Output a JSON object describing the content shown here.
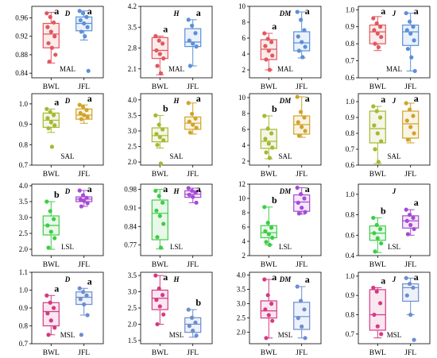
{
  "colors": {
    "BWL": "#e0585e",
    "JFL": "#5b8fd8",
    "SAL": "#a6b832",
    "LSL_BWL": "#3fcc48",
    "LSL_JFL": "#a64bd3",
    "MSL_BWL": "#d43a84",
    "MSL_JFL": "#6c8dd0",
    "SAL_JFL": "#d1a32a"
  },
  "chart_data": [
    {
      "type": "box",
      "region": "MAL",
      "metric": "D",
      "categories": [
        "BWL",
        "JFL"
      ],
      "yticks": [
        "0.84",
        "0.88",
        "0.92",
        "0.96"
      ],
      "ylim": [
        0.83,
        0.985
      ],
      "series": [
        {
          "name": "BWL",
          "color": "#e0585e",
          "q1": 0.895,
          "median": 0.925,
          "q3": 0.948,
          "min": 0.862,
          "max": 0.972,
          "letter": "a",
          "points": [
            0.97,
            0.962,
            0.95,
            0.94,
            0.93,
            0.92,
            0.905,
            0.895,
            0.88,
            0.865
          ]
        },
        {
          "name": "JFL",
          "color": "#5b8fd8",
          "q1": 0.932,
          "median": 0.948,
          "q3": 0.962,
          "min": 0.912,
          "max": 0.975,
          "letter": "a",
          "points": [
            0.975,
            0.97,
            0.962,
            0.955,
            0.948,
            0.94,
            0.93,
            0.92,
            0.845
          ]
        }
      ]
    },
    {
      "type": "box",
      "region": "MAL",
      "metric": "H",
      "categories": [
        "BWL",
        "JFL"
      ],
      "yticks": [
        "2.1",
        "2.8",
        "3.5",
        "4.2"
      ],
      "ylim": [
        1.8,
        4.2
      ],
      "series": [
        {
          "name": "BWL",
          "color": "#e0585e",
          "q1": 2.45,
          "median": 2.72,
          "q3": 3.15,
          "min": 1.9,
          "max": 3.2,
          "letter": "a",
          "points": [
            3.2,
            3.05,
            2.95,
            2.72,
            2.6,
            2.45,
            2.2,
            1.95
          ]
        },
        {
          "name": "JFL",
          "color": "#5b8fd8",
          "q1": 2.85,
          "median": 3.0,
          "q3": 3.45,
          "min": 2.2,
          "max": 3.75,
          "letter": "a",
          "points": [
            3.75,
            3.55,
            3.3,
            3.05,
            2.95,
            2.85,
            2.2
          ]
        }
      ]
    },
    {
      "type": "box",
      "region": "MAL",
      "metric": "DM",
      "categories": [
        "BWL",
        "JFL"
      ],
      "yticks": [
        "2",
        "4",
        "6",
        "8",
        "10"
      ],
      "ylim": [
        1,
        10
      ],
      "series": [
        {
          "name": "BWL",
          "color": "#e0585e",
          "q1": 3.3,
          "median": 4.6,
          "q3": 5.8,
          "min": 2.0,
          "max": 6.6,
          "letter": "a",
          "points": [
            6.6,
            5.9,
            5.5,
            5.0,
            4.4,
            3.8,
            3.3,
            2.0
          ]
        },
        {
          "name": "JFL",
          "color": "#5b8fd8",
          "q1": 4.4,
          "median": 5.4,
          "q3": 6.8,
          "min": 3.5,
          "max": 9.3,
          "letter": "a",
          "points": [
            9.3,
            8.3,
            7.0,
            6.2,
            5.5,
            4.9,
            4.4,
            3.6
          ]
        }
      ]
    },
    {
      "type": "box",
      "region": "MAL",
      "metric": "J",
      "categories": [
        "BWL",
        "JFL"
      ],
      "yticks": [
        "0.6",
        "0.7",
        "0.8",
        "0.9",
        "1.0"
      ],
      "ylim": [
        0.6,
        1.02
      ],
      "series": [
        {
          "name": "BWL",
          "color": "#e0585e",
          "q1": 0.8,
          "median": 0.87,
          "q3": 0.91,
          "min": 0.76,
          "max": 0.96,
          "letter": "a",
          "points": [
            0.95,
            0.92,
            0.9,
            0.88,
            0.86,
            0.84,
            0.8,
            0.78
          ]
        },
        {
          "name": "JFL",
          "color": "#5b8fd8",
          "q1": 0.79,
          "median": 0.87,
          "q3": 0.91,
          "min": 0.64,
          "max": 0.98,
          "letter": "a",
          "points": [
            0.98,
            0.93,
            0.9,
            0.88,
            0.86,
            0.82,
            0.77,
            0.72,
            0.64
          ]
        }
      ]
    },
    {
      "type": "box",
      "region": "SAL",
      "metric": "D",
      "categories": [
        "BWL",
        "JFL"
      ],
      "yticks": [
        "0.7",
        "0.8",
        "0.9",
        "1.0"
      ],
      "ylim": [
        0.7,
        1.05
      ],
      "series": [
        {
          "name": "BWL",
          "color": "#a6b832",
          "q1": 0.885,
          "median": 0.92,
          "q3": 0.955,
          "min": 0.86,
          "max": 0.975,
          "letter": "a",
          "points": [
            0.975,
            0.96,
            0.945,
            0.93,
            0.91,
            0.895,
            0.88,
            0.79
          ]
        },
        {
          "name": "JFL",
          "color": "#d1a32a",
          "q1": 0.925,
          "median": 0.945,
          "q3": 0.975,
          "min": 0.905,
          "max": 0.995,
          "letter": "a",
          "points": [
            0.995,
            0.985,
            0.97,
            0.955,
            0.945,
            0.935,
            0.925
          ]
        }
      ]
    },
    {
      "type": "box",
      "region": "SAL",
      "metric": "H",
      "categories": [
        "BWL",
        "JFL"
      ],
      "yticks": [
        "2.0",
        "2.5",
        "3.0",
        "3.5",
        "4.0"
      ],
      "ylim": [
        1.9,
        4.2
      ],
      "series": [
        {
          "name": "BWL",
          "color": "#a6b832",
          "q1": 2.65,
          "median": 2.85,
          "q3": 3.1,
          "min": 2.45,
          "max": 3.5,
          "letter": "b",
          "points": [
            3.5,
            3.2,
            3.05,
            2.9,
            2.8,
            2.7,
            2.55,
            1.95
          ]
        },
        {
          "name": "JFL",
          "color": "#d1a32a",
          "q1": 3.05,
          "median": 3.25,
          "q3": 3.45,
          "min": 2.9,
          "max": 3.9,
          "letter": "a",
          "points": [
            3.9,
            3.55,
            3.4,
            3.3,
            3.2,
            3.1,
            2.95
          ]
        }
      ]
    },
    {
      "type": "box",
      "region": "SAL",
      "metric": "DM",
      "categories": [
        "BWL",
        "JFL"
      ],
      "yticks": [
        "2",
        "4",
        "6",
        "8",
        "10"
      ],
      "ylim": [
        1.5,
        10.5
      ],
      "series": [
        {
          "name": "BWL",
          "color": "#a6b832",
          "q1": 3.6,
          "median": 4.5,
          "q3": 6.0,
          "min": 2.3,
          "max": 7.7,
          "letter": "b",
          "points": [
            7.7,
            6.1,
            5.5,
            4.8,
            4.2,
            3.7,
            3.1,
            2.4
          ]
        },
        {
          "name": "JFL",
          "color": "#d1a32a",
          "q1": 5.4,
          "median": 6.6,
          "q3": 7.7,
          "min": 5.0,
          "max": 10.1,
          "letter": "a",
          "points": [
            10.1,
            8.2,
            7.5,
            6.9,
            6.3,
            5.8,
            5.2
          ]
        }
      ]
    },
    {
      "type": "box",
      "region": "SAL",
      "metric": "J",
      "categories": [
        "BWL",
        "JFL"
      ],
      "yticks": [
        "0.6",
        "0.7",
        "0.8",
        "0.9",
        "1.0"
      ],
      "ylim": [
        0.6,
        1.05
      ],
      "series": [
        {
          "name": "BWL",
          "color": "#a6b832",
          "q1": 0.74,
          "median": 0.83,
          "q3": 0.94,
          "min": 0.61,
          "max": 0.97,
          "letter": "a",
          "points": [
            0.97,
            0.94,
            0.9,
            0.85,
            0.8,
            0.75,
            0.7,
            0.62
          ]
        },
        {
          "name": "JFL",
          "color": "#d1a32a",
          "q1": 0.77,
          "median": 0.86,
          "q3": 0.94,
          "min": 0.74,
          "max": 0.99,
          "letter": "a",
          "points": [
            0.99,
            0.95,
            0.91,
            0.88,
            0.84,
            0.8,
            0.76
          ]
        }
      ]
    },
    {
      "type": "box",
      "region": "LSL",
      "metric": "D",
      "categories": [
        "BWL",
        "JFL"
      ],
      "yticks": [
        "2.0",
        "2.5",
        "3.0",
        "3.5",
        "4.0"
      ],
      "ylim": [
        1.8,
        4.05
      ],
      "series": [
        {
          "name": "BWL",
          "color": "#3fcc48",
          "q1": 2.45,
          "median": 2.75,
          "q3": 3.05,
          "min": 2.0,
          "max": 3.5,
          "letter": "b",
          "points": [
            3.5,
            3.2,
            2.95,
            2.75,
            2.55,
            2.35,
            2.05
          ]
        },
        {
          "name": "JFL",
          "color": "#a64bd3",
          "q1": 3.5,
          "median": 3.58,
          "q3": 3.65,
          "min": 3.35,
          "max": 3.85,
          "letter": "a",
          "points": [
            3.85,
            3.7,
            3.62,
            3.57,
            3.52,
            3.45,
            3.35
          ]
        }
      ]
    },
    {
      "type": "box",
      "region": "LSL",
      "metric": "H",
      "categories": [
        "BWL",
        "JFL"
      ],
      "yticks": [
        "0.77",
        "0.84",
        "0.91",
        "0.98"
      ],
      "ylim": [
        0.73,
        1.0
      ],
      "series": [
        {
          "name": "BWL",
          "color": "#3fcc48",
          "q1": 0.79,
          "median": 0.89,
          "q3": 0.94,
          "min": 0.755,
          "max": 0.98,
          "letter": "a",
          "points": [
            0.975,
            0.955,
            0.93,
            0.9,
            0.88,
            0.85,
            0.8,
            0.76
          ]
        },
        {
          "name": "JFL",
          "color": "#a64bd3",
          "q1": 0.95,
          "median": 0.962,
          "q3": 0.975,
          "min": 0.93,
          "max": 0.985,
          "letter": "a",
          "points": [
            0.985,
            0.975,
            0.968,
            0.96,
            0.952,
            0.93
          ]
        }
      ]
    },
    {
      "type": "box",
      "region": "LSL",
      "metric": "DM",
      "categories": [
        "BWL",
        "JFL"
      ],
      "yticks": [
        "2",
        "4",
        "6",
        "8",
        "10",
        "12"
      ],
      "ylim": [
        2,
        12
      ],
      "series": [
        {
          "name": "BWL",
          "color": "#3fcc48",
          "q1": 4.5,
          "median": 5.2,
          "q3": 6.2,
          "min": 3.5,
          "max": 8.8,
          "letter": "b",
          "points": [
            8.8,
            6.6,
            5.9,
            5.4,
            5.0,
            4.5,
            3.9,
            3.5
          ]
        },
        {
          "name": "JFL",
          "color": "#a64bd3",
          "q1": 8.2,
          "median": 9.5,
          "q3": 10.5,
          "min": 7.8,
          "max": 11.5,
          "letter": "a",
          "points": [
            11.5,
            10.6,
            10.0,
            9.4,
            8.7,
            8.1,
            7.9
          ]
        }
      ]
    },
    {
      "type": "box",
      "region": "LSL",
      "metric": "J",
      "categories": [
        "BWL",
        "JFL"
      ],
      "yticks": [
        "0.4",
        "0.6",
        "0.8",
        "1.0"
      ],
      "ylim": [
        0.4,
        1.1
      ],
      "series": [
        {
          "name": "BWL",
          "color": "#3fcc48",
          "q1": 0.55,
          "median": 0.62,
          "q3": 0.69,
          "min": 0.43,
          "max": 0.77,
          "letter": "b",
          "points": [
            0.77,
            0.7,
            0.66,
            0.62,
            0.57,
            0.52,
            0.44
          ]
        },
        {
          "name": "JFL",
          "color": "#a64bd3",
          "q1": 0.67,
          "median": 0.74,
          "q3": 0.79,
          "min": 0.6,
          "max": 0.85,
          "letter": "a",
          "points": [
            0.85,
            0.8,
            0.77,
            0.74,
            0.7,
            0.66,
            0.61
          ]
        }
      ]
    },
    {
      "type": "box",
      "region": "MSL",
      "metric": "D",
      "categories": [
        "BWL",
        "JFL"
      ],
      "yticks": [
        "0.7",
        "0.8",
        "0.9",
        "1.0",
        "1.1"
      ],
      "ylim": [
        0.7,
        1.1
      ],
      "series": [
        {
          "name": "BWL",
          "color": "#d43a84",
          "q1": 0.8,
          "median": 0.88,
          "q3": 0.93,
          "min": 0.75,
          "max": 0.97,
          "letter": "a",
          "points": [
            0.97,
            0.93,
            0.9,
            0.87,
            0.83,
            0.79,
            0.75
          ]
        },
        {
          "name": "JFL",
          "color": "#6c8dd0",
          "q1": 0.92,
          "median": 0.96,
          "q3": 0.99,
          "min": 0.86,
          "max": 1.01,
          "letter": "a",
          "points": [
            1.01,
            0.99,
            0.97,
            0.95,
            0.92,
            0.86,
            0.75
          ]
        }
      ]
    },
    {
      "type": "box",
      "region": "MSL",
      "metric": "H",
      "categories": [
        "BWL",
        "JFL"
      ],
      "yticks": [
        "1.5",
        "2.0",
        "2.5",
        "3.0",
        "3.5"
      ],
      "ylim": [
        1.4,
        3.6
      ],
      "series": [
        {
          "name": "BWL",
          "color": "#d43a84",
          "q1": 2.45,
          "median": 2.8,
          "q3": 3.05,
          "min": 2.0,
          "max": 3.5,
          "letter": "a",
          "points": [
            3.5,
            3.1,
            2.9,
            2.75,
            2.55,
            2.3,
            2.0
          ]
        },
        {
          "name": "JFL",
          "color": "#6c8dd0",
          "q1": 1.75,
          "median": 2.0,
          "q3": 2.2,
          "min": 1.6,
          "max": 2.45,
          "letter": "b",
          "points": [
            2.45,
            2.2,
            2.05,
            1.95,
            1.8,
            1.65
          ]
        }
      ]
    },
    {
      "type": "box",
      "region": "MSL",
      "metric": "DM",
      "categories": [
        "BWL",
        "JFL"
      ],
      "yticks": [
        "2.0",
        "2.5",
        "3.0",
        "3.5",
        "4.0"
      ],
      "ylim": [
        1.6,
        4.1
      ],
      "series": [
        {
          "name": "BWL",
          "color": "#d43a84",
          "q1": 2.5,
          "median": 2.75,
          "q3": 3.1,
          "min": 1.8,
          "max": 3.85,
          "letter": "a",
          "points": [
            3.85,
            3.3,
            3.0,
            2.8,
            2.6,
            2.4,
            1.8
          ]
        },
        {
          "name": "JFL",
          "color": "#6c8dd0",
          "q1": 2.1,
          "median": 2.55,
          "q3": 3.05,
          "min": 1.8,
          "max": 3.6,
          "letter": "a",
          "points": [
            3.6,
            3.1,
            2.8,
            2.5,
            2.2,
            1.8
          ]
        }
      ]
    },
    {
      "type": "box",
      "region": "MSL",
      "metric": "J",
      "categories": [
        "BWL",
        "JFL"
      ],
      "yticks": [
        "0.7",
        "0.8",
        "0.9",
        "1.0"
      ],
      "ylim": [
        0.65,
        1.02
      ],
      "series": [
        {
          "name": "BWL",
          "color": "#d43a84",
          "q1": 0.72,
          "median": 0.8,
          "q3": 0.93,
          "min": 0.68,
          "max": 0.94,
          "letter": "a",
          "points": [
            0.94,
            0.92,
            0.86,
            0.8,
            0.74,
            0.7
          ]
        },
        {
          "name": "JFL",
          "color": "#6c8dd0",
          "q1": 0.87,
          "median": 0.94,
          "q3": 0.96,
          "min": 0.8,
          "max": 0.99,
          "letter": "a",
          "points": [
            0.99,
            0.96,
            0.94,
            0.9,
            0.8,
            0.67
          ]
        }
      ]
    }
  ]
}
